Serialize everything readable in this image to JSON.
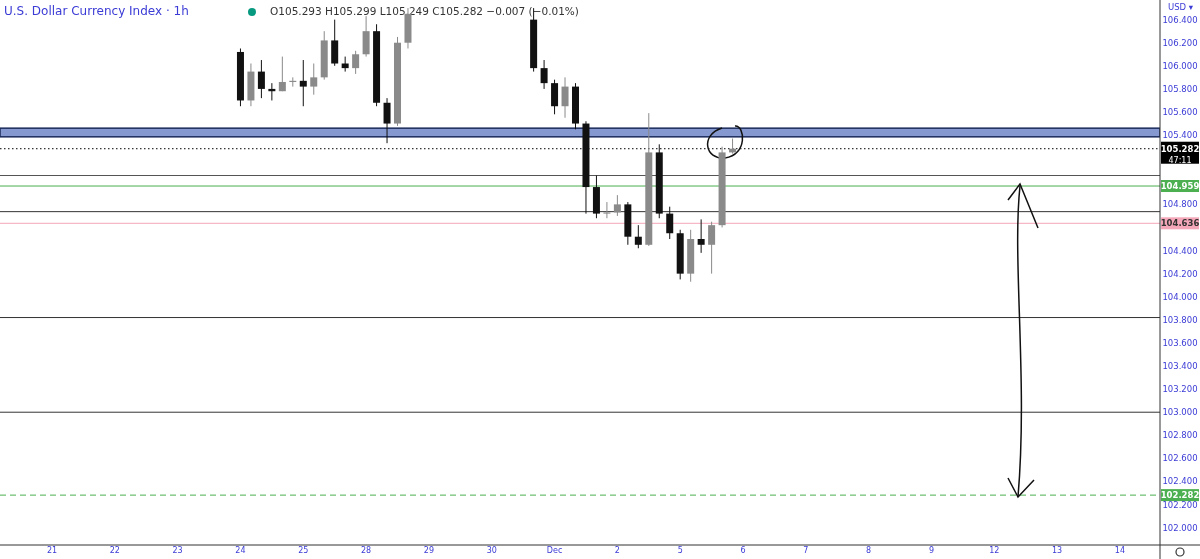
{
  "chart_data": {
    "type": "candlestick",
    "title": "U.S. Dollar Currency Index · 1h",
    "annotations": [
      "O105.293 H105.299 L105.249 C105.282 −0.007 (−0.01%)",
      "USD ▾",
      "47:11"
    ],
    "categories": [
      "21",
      null,
      null,
      null,
      null,
      null,
      "22",
      null,
      null,
      null,
      null,
      null,
      "23",
      null,
      null,
      null,
      null,
      null,
      "24",
      null,
      null,
      null,
      null,
      null,
      "25",
      null,
      null,
      null,
      null,
      null,
      "28",
      null,
      null,
      null,
      null,
      null,
      "29",
      null,
      null,
      null,
      null,
      null,
      "30",
      null,
      null,
      null,
      null,
      null,
      "Dec",
      null,
      null,
      null,
      null,
      null,
      "2",
      null,
      null,
      null,
      null,
      null,
      "5",
      null,
      null,
      null,
      null,
      null,
      "6",
      null,
      null,
      null,
      null,
      null,
      "7",
      null,
      null,
      null,
      null,
      null,
      "8",
      null,
      null,
      null,
      null,
      null,
      "9",
      null,
      null,
      null,
      null,
      null,
      "12",
      null,
      null,
      null,
      null,
      null,
      "13",
      null,
      null,
      null,
      null,
      null,
      "14",
      null,
      null,
      null,
      null,
      null
    ],
    "ohlc": [
      null,
      null,
      null,
      null,
      null,
      null,
      null,
      null,
      null,
      null,
      null,
      null,
      null,
      null,
      null,
      null,
      null,
      null,
      [
        106.12,
        106.15,
        105.65,
        105.7
      ],
      [
        105.7,
        106.02,
        105.65,
        105.95
      ],
      [
        105.95,
        106.05,
        105.72,
        105.8
      ],
      [
        105.8,
        105.85,
        105.7,
        105.78
      ],
      [
        105.78,
        106.08,
        105.78,
        105.86
      ],
      [
        105.86,
        105.9,
        105.82,
        105.87
      ],
      [
        105.87,
        106.05,
        105.65,
        105.82
      ],
      [
        105.82,
        106.02,
        105.75,
        105.9
      ],
      [
        105.9,
        106.3,
        105.88,
        106.22
      ],
      [
        106.22,
        106.4,
        106.0,
        106.02
      ],
      [
        106.02,
        106.08,
        105.95,
        105.98
      ],
      [
        105.98,
        106.13,
        105.93,
        106.1
      ],
      [
        106.1,
        106.43,
        106.08,
        106.3
      ],
      [
        106.3,
        106.36,
        105.65,
        105.68
      ],
      [
        105.68,
        105.72,
        105.33,
        105.5
      ],
      [
        105.5,
        106.25,
        105.48,
        106.2
      ],
      [
        106.2,
        106.5,
        106.15,
        106.45
      ],
      null,
      null,
      null,
      null,
      null,
      null,
      null,
      null,
      null,
      null,
      null,
      [
        106.4,
        106.5,
        105.95,
        105.98
      ],
      [
        105.98,
        106.05,
        105.8,
        105.85
      ],
      [
        105.85,
        105.88,
        105.58,
        105.65
      ],
      [
        105.65,
        105.9,
        105.55,
        105.82
      ],
      [
        105.82,
        105.85,
        105.45,
        105.5
      ],
      [
        105.5,
        105.52,
        104.72,
        104.95
      ],
      [
        104.95,
        105.05,
        104.68,
        104.72
      ],
      [
        104.72,
        104.82,
        104.68,
        104.73
      ],
      [
        104.73,
        104.88,
        104.7,
        104.8
      ],
      [
        104.8,
        104.82,
        104.45,
        104.52
      ],
      [
        104.52,
        104.62,
        104.42,
        104.45
      ],
      [
        104.45,
        105.59,
        104.44,
        105.25
      ],
      [
        105.25,
        105.32,
        104.68,
        104.72
      ],
      [
        104.72,
        104.78,
        104.5,
        104.55
      ],
      [
        104.55,
        104.58,
        104.15,
        104.2
      ],
      [
        104.2,
        104.58,
        104.13,
        104.5
      ],
      [
        104.5,
        104.67,
        104.38,
        104.45
      ],
      [
        104.45,
        104.65,
        104.2,
        104.62
      ],
      [
        104.62,
        105.3,
        104.6,
        105.25
      ],
      [
        105.25,
        105.37,
        105.24,
        105.282
      ],
      null,
      null,
      null,
      null,
      null,
      null,
      null,
      null,
      null,
      null,
      null,
      null,
      null,
      null,
      null,
      null,
      null,
      null,
      null,
      null,
      null,
      null,
      null,
      null,
      null,
      null,
      null,
      null,
      null,
      null,
      null,
      null,
      null,
      null,
      null,
      null,
      null,
      null,
      null,
      null,
      null,
      null
    ],
    "ylim": [
      101.85,
      106.57
    ],
    "yticks": [
      {
        "value": 102,
        "label": "102.000"
      },
      {
        "value": 102.2,
        "label": "102.200"
      },
      {
        "value": 102.4,
        "label": "102.400"
      },
      {
        "value": 102.6,
        "label": "102.600"
      },
      {
        "value": 102.8,
        "label": "102.800"
      },
      {
        "value": 103,
        "label": "103.000"
      },
      {
        "value": 103.2,
        "label": "103.200"
      },
      {
        "value": 103.4,
        "label": "103.400"
      },
      {
        "value": 103.6,
        "label": "103.600"
      },
      {
        "value": 103.8,
        "label": "103.800"
      },
      {
        "value": 104,
        "label": "104.000"
      },
      {
        "value": 104.2,
        "label": "104.200"
      },
      {
        "value": 104.4,
        "label": "104.400"
      },
      {
        "value": 104.8,
        "label": "104.800"
      },
      {
        "value": 105.4,
        "label": "105.400"
      },
      {
        "value": 105.6,
        "label": "105.600"
      },
      {
        "value": 105.8,
        "label": "105.800"
      },
      {
        "value": 106,
        "label": "106.000"
      },
      {
        "value": 106.2,
        "label": "106.200"
      },
      {
        "value": 106.4,
        "label": "106.400"
      }
    ],
    "bands": [
      {
        "axis": "y",
        "from": 105.385,
        "to": 105.46,
        "color": "#8598cf"
      }
    ],
    "ref_lines": [
      {
        "axis": "y",
        "value": 105.282,
        "label": "105.282",
        "color": "#000000",
        "line_style": "dotted"
      },
      {
        "axis": "y",
        "value": 105.05,
        "color": "#555555"
      },
      {
        "axis": "y",
        "value": 104.959,
        "label": "104.959",
        "color": "#4caf50"
      },
      {
        "axis": "y",
        "value": 104.737,
        "color": "#333333"
      },
      {
        "axis": "y",
        "value": 104.636,
        "label": "104.636",
        "color": "#f4a7b9"
      },
      {
        "axis": "y",
        "value": 103.82,
        "color": "#333333"
      },
      {
        "axis": "y",
        "value": 103.0,
        "color": "#333333"
      },
      {
        "axis": "y",
        "value": 102.282,
        "label": "102.282",
        "color": "#4caf50",
        "line_style": "dashed"
      }
    ],
    "grid": false
  }
}
